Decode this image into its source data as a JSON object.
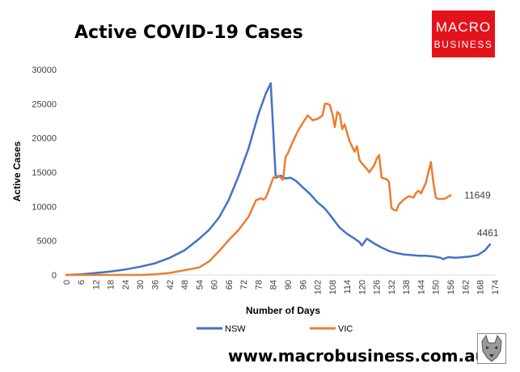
{
  "header": {
    "title": "Active COVID-19 Cases"
  },
  "brand": {
    "logo_line1": "MACRO",
    "logo_line2": "BUSINESS",
    "website": "www.macrobusiness.com.au",
    "logo_color": "#e3131b"
  },
  "chart_data": {
    "type": "line",
    "title": "Active COVID-19 Cases",
    "xlabel": "Number of Days",
    "ylabel": "Active Cases",
    "xlim": [
      0,
      174
    ],
    "ylim": [
      0,
      30000
    ],
    "x_ticks": [
      0,
      6,
      12,
      18,
      24,
      30,
      36,
      42,
      48,
      54,
      60,
      66,
      72,
      78,
      84,
      90,
      96,
      102,
      108,
      114,
      120,
      126,
      132,
      138,
      144,
      150,
      156,
      162,
      168,
      174
    ],
    "y_ticks": [
      0,
      5000,
      10000,
      15000,
      20000,
      25000,
      30000
    ],
    "y_tick_labels": [
      "0",
      "5000",
      "10000",
      "15000",
      "20000",
      "25000",
      "30000"
    ],
    "grid": false,
    "legend": "bottom",
    "series": [
      {
        "name": "NSW",
        "color": "#4472c4",
        "x": [
          0,
          6,
          12,
          18,
          24,
          30,
          36,
          42,
          48,
          54,
          58,
          62,
          66,
          70,
          74,
          78,
          81,
          83,
          84,
          85,
          87,
          89,
          91,
          93,
          96,
          99,
          102,
          105,
          108,
          111,
          114,
          117,
          119,
          120,
          122,
          125,
          128,
          131,
          134,
          137,
          140,
          143,
          146,
          149,
          152,
          153,
          155,
          158,
          161,
          164,
          167,
          170,
          172
        ],
        "y": [
          0,
          100,
          300,
          500,
          800,
          1200,
          1700,
          2500,
          3600,
          5300,
          6600,
          8400,
          11000,
          14500,
          18500,
          23500,
          26500,
          28000,
          21000,
          14200,
          14500,
          14100,
          14200,
          13800,
          12800,
          11800,
          10600,
          9700,
          8300,
          6900,
          6000,
          5300,
          4800,
          4300,
          5300,
          4600,
          4000,
          3500,
          3200,
          3000,
          2900,
          2800,
          2800,
          2700,
          2500,
          2300,
          2600,
          2500,
          2600,
          2700,
          2900,
          3600,
          4461
        ]
      },
      {
        "name": "VIC",
        "color": "#ed7d31",
        "x": [
          0,
          6,
          12,
          18,
          24,
          30,
          36,
          42,
          48,
          54,
          58,
          62,
          66,
          70,
          74,
          77,
          79,
          80,
          81,
          82,
          84,
          85,
          86,
          88,
          89,
          90,
          92,
          94,
          96,
          98,
          100,
          102,
          104,
          105,
          106,
          107,
          108,
          109,
          110,
          111,
          112,
          113,
          115,
          116,
          117,
          118,
          119,
          120,
          122,
          123,
          125,
          126,
          127,
          128,
          130,
          131,
          132,
          133,
          134,
          135,
          137,
          139,
          141,
          142,
          143,
          144,
          146,
          148,
          149,
          150,
          151,
          153,
          154,
          156
        ],
        "y": [
          0,
          0,
          0,
          0,
          0,
          0,
          100,
          300,
          700,
          1100,
          2000,
          3500,
          5100,
          6600,
          8500,
          10900,
          11200,
          11000,
          11300,
          12200,
          14200,
          14400,
          14500,
          13900,
          17200,
          17800,
          19500,
          21000,
          22200,
          23300,
          22600,
          22800,
          23300,
          25000,
          25000,
          24800,
          23500,
          21600,
          23800,
          23500,
          21300,
          22000,
          19500,
          18800,
          18000,
          18800,
          16800,
          16300,
          15500,
          15000,
          16000,
          17000,
          17500,
          14200,
          14000,
          13600,
          9800,
          9500,
          9400,
          10300,
          11000,
          11500,
          11300,
          12000,
          12300,
          11900,
          13500,
          16500,
          13500,
          11300,
          11100,
          11100,
          11200,
          11649
        ]
      }
    ],
    "annotations": [
      {
        "series": "VIC",
        "text": "11649",
        "x": 156,
        "y": 11649
      },
      {
        "series": "NSW",
        "text": "4461",
        "x": 172,
        "y": 4461
      }
    ]
  }
}
